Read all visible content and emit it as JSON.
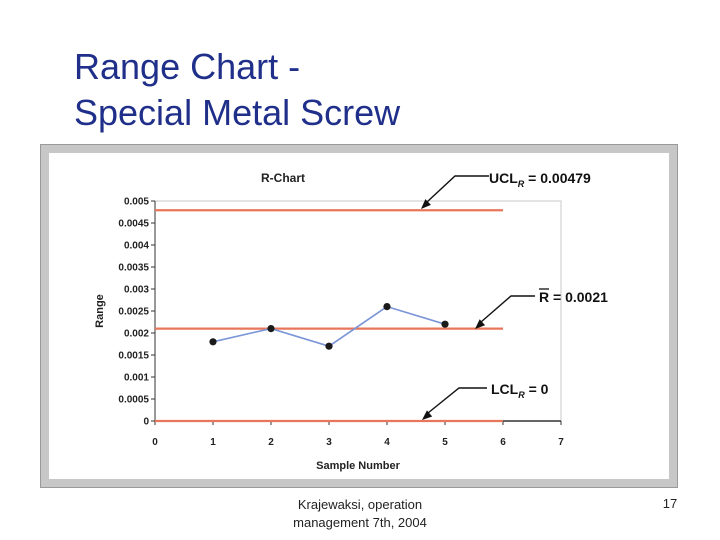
{
  "slide": {
    "title_line1": "Range Chart -",
    "title_line2": "Special Metal Screw",
    "footer_line1": "Krajewaksi, operation",
    "footer_line2": "management 7th, 2004",
    "page_number": "17"
  },
  "chart_data": {
    "type": "line",
    "title": "R-Chart",
    "xlabel": "Sample Number",
    "ylabel": "Range",
    "xlim": [
      0,
      7
    ],
    "ylim": [
      0,
      0.005
    ],
    "x_ticks": [
      "0",
      "1",
      "2",
      "3",
      "4",
      "5",
      "6",
      "7"
    ],
    "y_ticks": [
      "0",
      "0.0005",
      "0.001",
      "0.0015",
      "0.002",
      "0.0025",
      "0.003",
      "0.0035",
      "0.004",
      "0.0045",
      "0.005"
    ],
    "series": [
      {
        "x": [
          1,
          2,
          3,
          4,
          5
        ],
        "values": [
          0.0018,
          0.0021,
          0.0017,
          0.0026,
          0.0022
        ],
        "color": "#7b95d8"
      }
    ],
    "control_lines": [
      {
        "prefix": "UCL",
        "subscript": "R",
        "label_value": " = 0.00479",
        "value": 0.00479,
        "color": "#e8765a"
      },
      {
        "prefix": "R",
        "subscript": "",
        "label_value": " = 0.0021",
        "value": 0.0021,
        "color": "#e8765a",
        "overbar": true
      },
      {
        "prefix": "LCL",
        "subscript": "R",
        "label_value": " = 0",
        "value": 0,
        "color": "#e8765a"
      }
    ],
    "plot_background": "#ffffff",
    "frame_background": "#c7c7c7"
  }
}
